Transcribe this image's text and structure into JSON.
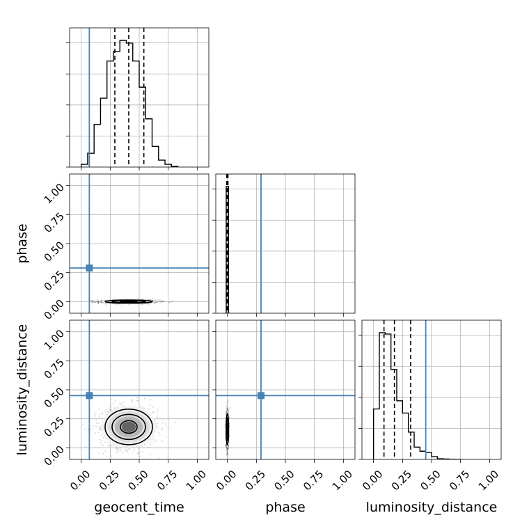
{
  "chart_data": {
    "type": "corner",
    "parameters": [
      "geocent_time",
      "phase",
      "luminosity_distance"
    ],
    "axis_range": [
      -0.1,
      1.1
    ],
    "tick_labels": [
      "0.00",
      "0.25",
      "0.50",
      "0.75",
      "1.00"
    ],
    "tick_values": [
      0,
      0.25,
      0.5,
      0.75,
      1.0
    ],
    "grid": true,
    "truths": {
      "geocent_time": 0.07,
      "phase": 0.29,
      "luminosity_distance": 0.45
    },
    "truth_color": "#4682b4",
    "line_color": "#000000",
    "quantiles": {
      "geocent_time": [
        0.29,
        0.41,
        0.54
      ],
      "phase": [
        -0.005,
        0.0,
        0.005
      ],
      "luminosity_distance": [
        0.09,
        0.18,
        0.32
      ]
    },
    "histograms": {
      "geocent_time": {
        "bin_edges": [
          0.0,
          0.0556,
          0.1111,
          0.1667,
          0.2222,
          0.2778,
          0.3333,
          0.3889,
          0.4444,
          0.5,
          0.5556,
          0.6111,
          0.6667,
          0.7222,
          0.7778,
          0.8333
        ],
        "counts": [
          0.02,
          0.1,
          0.31,
          0.5,
          0.77,
          0.84,
          0.92,
          0.9,
          0.77,
          0.58,
          0.35,
          0.15,
          0.05,
          0.02,
          0.005
        ]
      },
      "phase": {
        "bin_edges": [
          -0.02,
          -0.01,
          0.0,
          0.01,
          0.02
        ],
        "counts": [
          0.0,
          0.95,
          0.95,
          0.0
        ]
      },
      "luminosity_distance": {
        "bin_edges": [
          0.0,
          0.05,
          0.1,
          0.15,
          0.2,
          0.25,
          0.3,
          0.35,
          0.4,
          0.45,
          0.5,
          0.55,
          0.6,
          0.65,
          0.7,
          0.75
        ],
        "counts": [
          0.37,
          0.93,
          0.92,
          0.66,
          0.43,
          0.34,
          0.2,
          0.09,
          0.06,
          0.05,
          0.02,
          0.005,
          0.003,
          0.001,
          0.0
        ]
      }
    },
    "pairs": [
      {
        "x": "geocent_time",
        "y": "phase",
        "center": [
          0.41,
          0.0
        ],
        "sigma": [
          0.12,
          0.008
        ]
      },
      {
        "x": "geocent_time",
        "y": "luminosity_distance",
        "center": [
          0.41,
          0.18
        ],
        "sigma": [
          0.12,
          0.09
        ]
      },
      {
        "x": "phase",
        "y": "luminosity_distance",
        "center": [
          0.0,
          0.16
        ],
        "sigma": [
          0.006,
          0.08
        ]
      }
    ]
  }
}
